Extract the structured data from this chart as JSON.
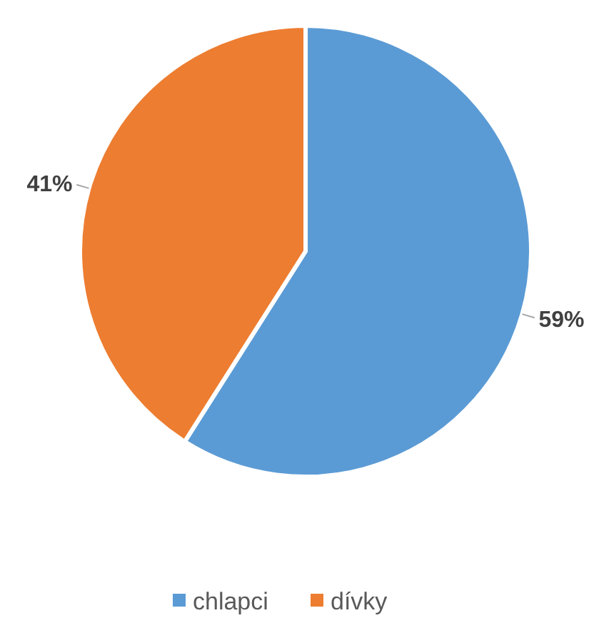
{
  "chart_data": {
    "type": "pie",
    "categories": [
      "chlapci",
      "dívky"
    ],
    "values": [
      59,
      41
    ],
    "colors": [
      "#5b9bd5",
      "#ed7d31"
    ],
    "value_labels": [
      "59%",
      "41%"
    ],
    "legend": "bottom"
  }
}
